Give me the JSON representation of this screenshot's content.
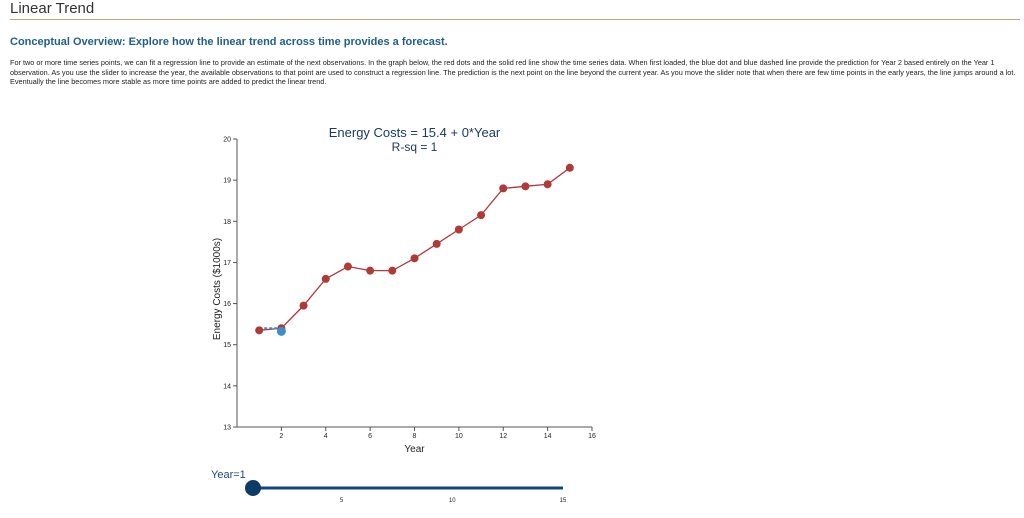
{
  "page": {
    "title": "Linear Trend",
    "subtitle": "Conceptual Overview: Explore how the linear trend across time provides a forecast.",
    "intro": "For two or more time series points, we can fit a regression line to provide an estimate of the next observations. In the graph below, the red dots and the solid red line show the time series data. When first loaded, the blue dot and blue dashed line provide the prediction for Year 2 based entirely on the Year 1 observation. As you use the slider to increase the year, the available observations to that point are used to construct a regression line. The prediction is the next point on the line beyond the current year. As you move the slider note that when there are few time points in the early years, the line jumps around a lot. Eventually the line becomes more stable as more time points are added to predict the linear trend."
  },
  "chart_data": {
    "type": "line",
    "title": "Energy Costs = 15.4 + 0*Year",
    "subtitle": "R-sq = 1",
    "xlabel": "Year",
    "ylabel": "Energy Costs ($1000s)",
    "xlim": [
      0,
      16
    ],
    "ylim": [
      13,
      20
    ],
    "x_ticks": [
      2,
      4,
      6,
      8,
      10,
      12,
      14,
      16
    ],
    "y_ticks": [
      13,
      14,
      15,
      16,
      17,
      18,
      19,
      20
    ],
    "series": [
      {
        "x": [
          1,
          2,
          3,
          4,
          5,
          6,
          7,
          8,
          9,
          10,
          11,
          12,
          13,
          14,
          15
        ],
        "y": [
          15.35,
          15.4,
          15.95,
          16.6,
          16.9,
          16.8,
          16.8,
          17.1,
          17.45,
          17.8,
          18.15,
          18.8,
          18.85,
          18.9,
          19.3
        ]
      }
    ],
    "prediction": {
      "x": 2,
      "y": 15.35
    },
    "trend_line": {
      "x": [
        1,
        2
      ],
      "y": [
        15.4,
        15.4
      ]
    },
    "colors": {
      "series": "#b03a38",
      "prediction": "#3a8fc8",
      "axis": "#555555"
    }
  },
  "slider": {
    "label": "Year=1",
    "value": 1,
    "min": 1,
    "max": 15,
    "ticks": [
      5,
      10,
      15
    ],
    "colors": {
      "track": "#0d4a7a",
      "knob": "#0d3a66"
    }
  }
}
